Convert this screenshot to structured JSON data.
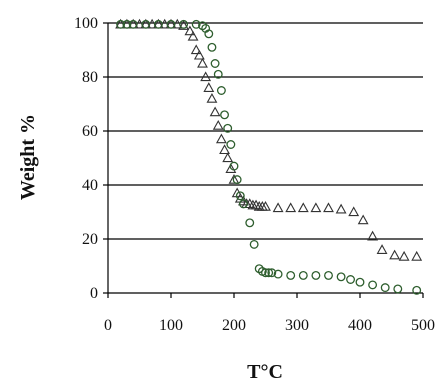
{
  "chart_data": {
    "type": "scatter",
    "title": "",
    "xlabel": "T°C",
    "ylabel": "Weight %",
    "xlim": [
      0,
      500
    ],
    "ylim": [
      0,
      100
    ],
    "xticks": [
      0,
      100,
      200,
      300,
      400,
      500
    ],
    "yticks": [
      0,
      20,
      40,
      60,
      80,
      100
    ],
    "grid": "horizontal",
    "series": [
      {
        "marker": "triangle",
        "color": "#333333",
        "x": [
          20,
          30,
          40,
          50,
          60,
          70,
          80,
          90,
          100,
          110,
          120,
          130,
          135,
          140,
          145,
          150,
          155,
          160,
          165,
          170,
          175,
          180,
          185,
          190,
          195,
          200,
          205,
          210,
          215,
          220,
          225,
          230,
          235,
          240,
          245,
          250,
          270,
          290,
          310,
          330,
          350,
          370,
          390,
          405,
          420,
          435,
          455,
          470,
          490
        ],
        "y": [
          99.5,
          99.5,
          99.5,
          99.5,
          99.5,
          99.5,
          99.5,
          99.5,
          99.5,
          99.5,
          99,
          97,
          95,
          90,
          88,
          85,
          80,
          76,
          72,
          67,
          62,
          57,
          53,
          50,
          46,
          42,
          37,
          35,
          34,
          33,
          33,
          32.5,
          32.5,
          32,
          32,
          32,
          31.5,
          31.5,
          31.5,
          31.5,
          31.5,
          31,
          30,
          27,
          21,
          16,
          14,
          13.5,
          13.5
        ]
      },
      {
        "marker": "circle",
        "color": "#2e5e2e",
        "x": [
          20,
          30,
          40,
          60,
          80,
          100,
          120,
          140,
          150,
          155,
          160,
          165,
          170,
          175,
          180,
          185,
          190,
          195,
          200,
          205,
          210,
          215,
          225,
          232,
          240,
          245,
          250,
          255,
          260,
          270,
          290,
          310,
          330,
          350,
          370,
          385,
          400,
          420,
          440,
          460,
          490
        ],
        "y": [
          99.5,
          99.5,
          99.5,
          99.5,
          99.5,
          99.5,
          99.5,
          99.5,
          99,
          98,
          96,
          91,
          85,
          81,
          75,
          66,
          61,
          55,
          47,
          42,
          36,
          33,
          26,
          18,
          9,
          8,
          7.5,
          7.5,
          7.5,
          7,
          6.5,
          6.5,
          6.5,
          6.5,
          6,
          5,
          4,
          3,
          2,
          1.5,
          1
        ]
      }
    ]
  }
}
